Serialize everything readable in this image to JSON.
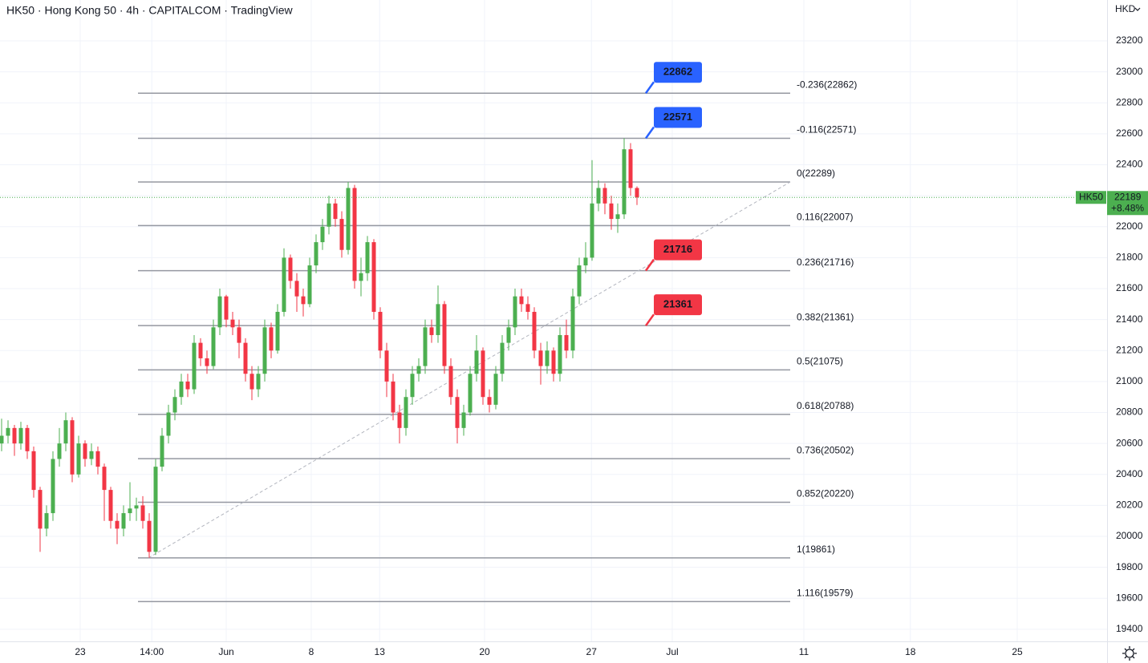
{
  "chart_data": {
    "type": "candlestick",
    "title": "HK50 · Hong Kong 50 · 4h · CAPITALCOM · TradingView",
    "currency": "HKD",
    "symbol": "HK50",
    "up_color": "#4caf50",
    "down_color": "#f23645",
    "open": [
      20600,
      20650,
      20700,
      20600,
      20700,
      20550,
      20300,
      20050,
      20150,
      20500,
      20600,
      20750,
      20400,
      20600,
      20500,
      20550,
      20450,
      20300,
      20100,
      20050,
      20150,
      20180,
      20200,
      20100,
      19900,
      20450,
      20650,
      20800,
      20900,
      21000,
      20950,
      21250,
      21150,
      21100,
      21350,
      21550,
      21400,
      21350,
      21250,
      21050,
      20950,
      21050,
      21350,
      21200,
      21450,
      21800,
      21650,
      21550,
      21500,
      21750,
      21900,
      22000,
      22150,
      22050,
      21850,
      22250,
      21650,
      21700,
      21900,
      21450,
      21200,
      21000,
      20800,
      20700,
      20900,
      21050,
      21100,
      21350,
      21300,
      21500,
      21100,
      20900,
      20700,
      20800,
      21050,
      21200,
      20900,
      20850,
      21050,
      21250,
      21350,
      21550,
      21500,
      21450,
      21200,
      21100,
      21200,
      21050,
      21300,
      21200,
      21550,
      21750,
      21800,
      22150,
      22250,
      22150,
      22050,
      22080,
      22500,
      22250
    ],
    "high": [
      20760,
      20750,
      20720,
      20740,
      20720,
      20580,
      20320,
      20200,
      20550,
      20700,
      20800,
      20770,
      20650,
      20620,
      20600,
      20580,
      20470,
      20320,
      20150,
      20200,
      20350,
      20250,
      20260,
      20150,
      20500,
      20700,
      20850,
      20950,
      21050,
      21050,
      21300,
      21280,
      21200,
      21400,
      21600,
      21560,
      21450,
      21400,
      21280,
      21100,
      21100,
      21400,
      21380,
      21500,
      21860,
      21820,
      21700,
      21600,
      21800,
      21950,
      22050,
      22200,
      22180,
      22100,
      22289,
      22270,
      21800,
      21940,
      21920,
      21480,
      21250,
      21050,
      20850,
      20950,
      21100,
      21150,
      21400,
      21400,
      21620,
      21520,
      21150,
      20950,
      20850,
      21100,
      21300,
      21220,
      20950,
      21100,
      21300,
      21400,
      21600,
      21600,
      21550,
      21480,
      21250,
      21260,
      21220,
      21350,
      21400,
      21600,
      21800,
      21900,
      22430,
      22300,
      22280,
      22200,
      22150,
      22571,
      22540,
      22260
    ],
    "low": [
      20550,
      20600,
      20520,
      20560,
      20500,
      20250,
      19900,
      20000,
      20100,
      20450,
      20550,
      20350,
      20380,
      20450,
      20460,
      20400,
      20100,
      20050,
      19950,
      20000,
      20100,
      20100,
      20050,
      19861,
      19880,
      20420,
      20600,
      20750,
      20850,
      20900,
      20920,
      21100,
      21050,
      21080,
      21300,
      21350,
      21300,
      21150,
      21000,
      20880,
      20900,
      21000,
      21150,
      21180,
      21420,
      21600,
      21450,
      21420,
      21480,
      21700,
      21850,
      21950,
      22000,
      21800,
      21820,
      21600,
      21550,
      21650,
      21400,
      21150,
      20900,
      20750,
      20600,
      20650,
      20850,
      21000,
      21050,
      21250,
      21250,
      21050,
      20850,
      20600,
      20650,
      20780,
      21000,
      20850,
      20800,
      20820,
      21000,
      21200,
      21300,
      21450,
      21400,
      21150,
      20980,
      21050,
      21000,
      21000,
      21150,
      21150,
      21500,
      21700,
      21780,
      22100,
      22080,
      21980,
      21960,
      22050,
      22200,
      22140
    ],
    "close": [
      20650,
      20700,
      20600,
      20700,
      20550,
      20300,
      20050,
      20150,
      20500,
      20600,
      20750,
      20400,
      20600,
      20500,
      20550,
      20450,
      20300,
      20100,
      20050,
      20150,
      20180,
      20200,
      20100,
      19900,
      20450,
      20650,
      20800,
      20900,
      21000,
      20950,
      21250,
      21150,
      21100,
      21350,
      21550,
      21400,
      21350,
      21250,
      21050,
      20950,
      21050,
      21350,
      21200,
      21450,
      21800,
      21650,
      21550,
      21500,
      21750,
      21900,
      22000,
      22150,
      22050,
      21850,
      22250,
      21650,
      21700,
      21900,
      21450,
      21200,
      21000,
      20800,
      20700,
      20900,
      21050,
      21100,
      21350,
      21300,
      21500,
      21100,
      20900,
      20700,
      20800,
      21050,
      21200,
      20900,
      20850,
      21050,
      21250,
      21350,
      21550,
      21500,
      21450,
      21200,
      21100,
      21200,
      21050,
      21300,
      21200,
      21550,
      21750,
      21800,
      22150,
      22250,
      22150,
      22050,
      22080,
      22500,
      22250,
      22189
    ],
    "xlim": [
      -0.25,
      172.25
    ],
    "xticks": [
      {
        "value": 12.25,
        "label": "23"
      },
      {
        "value": 23.4,
        "label": "14:00"
      },
      {
        "value": 35,
        "label": "Jun"
      },
      {
        "value": 48.25,
        "label": "8"
      },
      {
        "value": 58.9,
        "label": "13"
      },
      {
        "value": 75.25,
        "label": "20"
      },
      {
        "value": 91.9,
        "label": "27"
      },
      {
        "value": 104.5,
        "label": "Jul"
      },
      {
        "value": 125,
        "label": "11"
      },
      {
        "value": 141.6,
        "label": "18"
      },
      {
        "value": 158.25,
        "label": "25"
      }
    ],
    "ylim": [
      19322,
      23464
    ],
    "yticks": [
      19400,
      19600,
      19800,
      20000,
      20200,
      20400,
      20600,
      20800,
      21000,
      21200,
      21400,
      21600,
      21800,
      22000,
      22200,
      22400,
      22600,
      22800,
      23000,
      23200
    ],
    "grid": true,
    "fib_levels": [
      {
        "value": 22862,
        "label": "-0.236(22862)"
      },
      {
        "value": 22571,
        "label": "-0.116(22571)"
      },
      {
        "value": 22289,
        "label": "0(22289)"
      },
      {
        "value": 22007,
        "label": "0.116(22007)"
      },
      {
        "value": 21716,
        "label": "0.236(21716)"
      },
      {
        "value": 21361,
        "label": "0.382(21361)"
      },
      {
        "value": 21075,
        "label": "0.5(21075)"
      },
      {
        "value": 20788,
        "label": "0.618(20788)"
      },
      {
        "value": 20502,
        "label": "0.736(20502)"
      },
      {
        "value": 20220,
        "label": "0.852(20220)"
      },
      {
        "value": 19861,
        "label": "1(19861)"
      },
      {
        "value": 19579,
        "label": "1.116(19579)"
      }
    ],
    "fib_color": "#9598a1",
    "callouts": [
      {
        "value": 22862,
        "color": "#2962ff"
      },
      {
        "value": 22571,
        "color": "#2962ff"
      },
      {
        "value": 21716,
        "color": "#f23645"
      },
      {
        "value": 21361,
        "color": "#f23645"
      }
    ],
    "trendline": {
      "from": 19861,
      "to": 22289
    },
    "last_price": 22189,
    "change": {
      "value": 8.48,
      "label": "+8.48%"
    },
    "price_color": "#4caf50"
  }
}
